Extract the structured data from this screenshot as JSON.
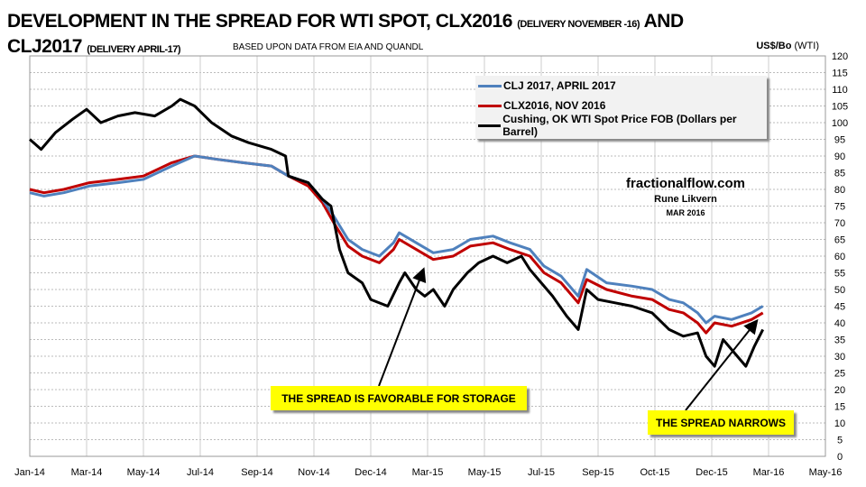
{
  "chart_data": {
    "type": "line",
    "title": {
      "line1": "DEVELOPMENT IN THE SPREAD FOR WTI SPOT, CLX2016",
      "line1_small": "(DELIVERY NOVEMBER -16)",
      "line1_end": "AND",
      "line2": "CLJ2017",
      "line2_small": "(DELIVERY APRIL-17)"
    },
    "subtitle": "BASED UPON DATA FROM EIA AND QUANDL",
    "ylabel": "US$/Bo",
    "ylabel_small": "(WTI)",
    "ylim": [
      0,
      120
    ],
    "yticks": [
      0,
      5,
      10,
      15,
      20,
      25,
      30,
      35,
      40,
      45,
      50,
      55,
      60,
      65,
      70,
      75,
      80,
      85,
      90,
      95,
      100,
      105,
      110,
      115,
      120
    ],
    "xlim": [
      0,
      28
    ],
    "x_unit": "months since Jan-14",
    "xticks": [
      "Jan-14",
      "Mar-14",
      "May-14",
      "Jul-14",
      "Sep-14",
      "Nov-14",
      "Dec-14",
      "Mar-15",
      "May-15",
      "Jul-15",
      "Sep-15",
      "Oct-15",
      "Dec-15",
      "Mar-16",
      "May-16"
    ],
    "grid": true,
    "legend_placement": "top-right",
    "series": [
      {
        "name": "CLJ 2017, APRIL 2017",
        "color": "#4f81bd",
        "x": [
          0,
          0.5,
          1.2,
          2.1,
          3.1,
          4.0,
          5.0,
          5.8,
          6.6,
          7.5,
          8.5,
          9.1,
          9.8,
          10.3,
          10.7,
          11.2,
          11.7,
          12.3,
          12.8,
          13.0,
          13.6,
          14.2,
          14.9,
          15.5,
          16.3,
          16.9,
          17.6,
          18.1,
          18.7,
          19.3,
          19.6,
          20.3,
          21.2,
          21.9,
          22.5,
          23.0,
          23.5,
          23.8,
          24.1,
          24.7,
          25.4,
          25.8
        ],
        "y": [
          79,
          78,
          79,
          81,
          82,
          83,
          87,
          90,
          89,
          88,
          87,
          84,
          82,
          77,
          72,
          65,
          62,
          60,
          64,
          67,
          64,
          61,
          62,
          65,
          66,
          64,
          62,
          57,
          54,
          48,
          56,
          52,
          51,
          50,
          47,
          46,
          43,
          40,
          42,
          41,
          43,
          45
        ]
      },
      {
        "name": "CLX2016, NOV 2016",
        "color": "#c00000",
        "x": [
          0,
          0.5,
          1.2,
          2.1,
          3.1,
          4.0,
          5.0,
          5.8,
          6.6,
          7.5,
          8.5,
          9.1,
          9.8,
          10.3,
          10.7,
          11.2,
          11.7,
          12.3,
          12.8,
          13.0,
          13.6,
          14.2,
          14.9,
          15.5,
          16.3,
          16.9,
          17.6,
          18.1,
          18.7,
          19.3,
          19.6,
          20.3,
          21.2,
          21.9,
          22.5,
          23.0,
          23.5,
          23.8,
          24.1,
          24.7,
          25.4,
          25.8
        ],
        "y": [
          80,
          79,
          80,
          82,
          83,
          84,
          88,
          90,
          89,
          88,
          87,
          84,
          81,
          76,
          70,
          63,
          60,
          58,
          62,
          65,
          62,
          59,
          60,
          63,
          64,
          62,
          60,
          55,
          52,
          46,
          53,
          50,
          48,
          47,
          44,
          43,
          40,
          37,
          40,
          39,
          41,
          43
        ]
      },
      {
        "name": "Cushing, OK WTI Spot Price FOB (Dollars per Barrel)",
        "color": "#000000",
        "x": [
          0,
          0.4,
          0.9,
          1.5,
          2.0,
          2.5,
          3.1,
          3.7,
          4.4,
          5.0,
          5.3,
          5.8,
          6.4,
          7.1,
          7.7,
          8.5,
          9.0,
          9.1,
          9.8,
          10.3,
          10.6,
          10.9,
          11.2,
          11.7,
          12.0,
          12.6,
          13.0,
          13.2,
          13.6,
          13.9,
          14.2,
          14.6,
          14.9,
          15.4,
          15.8,
          16.3,
          16.8,
          17.3,
          17.6,
          17.9,
          18.4,
          18.9,
          19.3,
          19.6,
          20.0,
          20.6,
          21.2,
          21.9,
          22.5,
          23.0,
          23.5,
          23.8,
          24.1,
          24.4,
          24.9,
          25.2,
          25.5,
          25.8
        ],
        "y": [
          95,
          92,
          97,
          101,
          104,
          100,
          102,
          103,
          102,
          105,
          107,
          105,
          100,
          96,
          94,
          92,
          90,
          84,
          82,
          77,
          75,
          62,
          55,
          52,
          47,
          45,
          52,
          55,
          50,
          48,
          50,
          45,
          50,
          55,
          58,
          60,
          58,
          60,
          56,
          53,
          48,
          42,
          38,
          50,
          47,
          46,
          45,
          43,
          38,
          36,
          37,
          30,
          27,
          35,
          30,
          27,
          33,
          38
        ]
      }
    ],
    "annotations": {
      "site": "fractionalflow.com",
      "author": "Rune Likvern",
      "date": "MAR 2016",
      "callout1": "THE SPREAD IS FAVORABLE FOR STORAGE",
      "callout2": "THE SPREAD NARROWS"
    }
  }
}
